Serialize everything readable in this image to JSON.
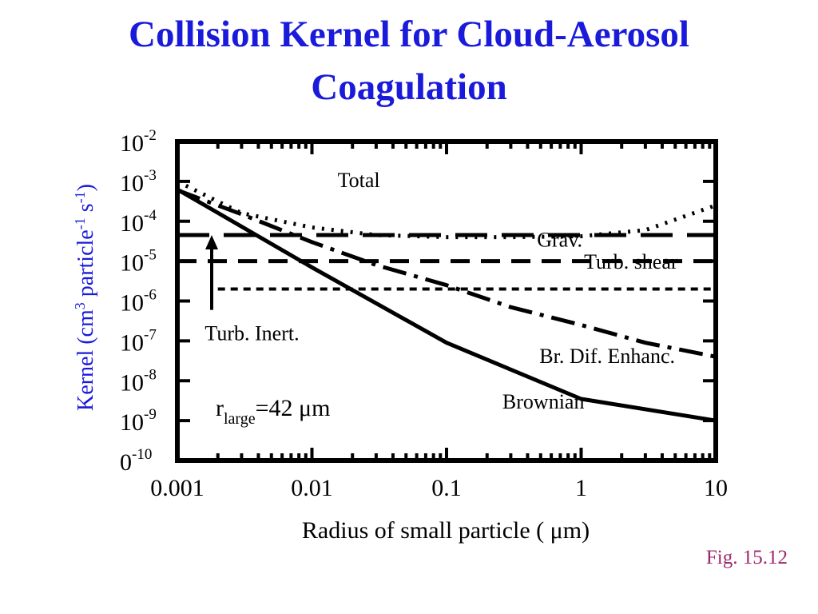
{
  "slide": {
    "title_line1": "Collision Kernel for Cloud-Aerosol",
    "title_line2": "Coagulation",
    "fig_label": "Fig. 15.12",
    "title_color": "#1a1adb",
    "fig_color": "#9c2a6b",
    "ylabel_color": "#1a1adb"
  },
  "chart_data": {
    "type": "line",
    "title": "Collision Kernel for Cloud-Aerosol Coagulation",
    "xlabel": "Radius of small particle ( μm)",
    "ylabel": "Kernel (cm3 particle-1 s-1)",
    "xscale": "log",
    "yscale": "log",
    "xlim": [
      0.001,
      10
    ],
    "ylim": [
      1e-10,
      0.01
    ],
    "x_ticks": [
      {
        "label": "0.001",
        "value": 0.001
      },
      {
        "label": "0.01",
        "value": 0.01
      },
      {
        "label": "0.1",
        "value": 0.1
      },
      {
        "label": "1",
        "value": 1
      },
      {
        "label": "10",
        "value": 10
      }
    ],
    "y_ticks": [
      {
        "base": "10",
        "exp": "-2",
        "value": 0.01
      },
      {
        "base": "10",
        "exp": "-3",
        "value": 0.001
      },
      {
        "base": "10",
        "exp": "-4",
        "value": 0.0001
      },
      {
        "base": "10",
        "exp": "-5",
        "value": 1e-05
      },
      {
        "base": "10",
        "exp": "-6",
        "value": 1e-06
      },
      {
        "base": "10",
        "exp": "-7",
        "value": 1e-07
      },
      {
        "base": "10",
        "exp": "-8",
        "value": 1e-08
      },
      {
        "base": "10",
        "exp": "-9",
        "value": 1e-09
      },
      {
        "base": "0",
        "exp": "-10",
        "value": 1e-10
      }
    ],
    "annotation": {
      "main": "r",
      "sub": "large",
      "rest": "=42 μm"
    },
    "series": [
      {
        "name": "Brownian",
        "style": "solid",
        "points": [
          [
            0.001,
            0.00063
          ],
          [
            0.01,
            7e-06
          ],
          [
            0.1,
            9e-08
          ],
          [
            1,
            3.5e-09
          ],
          [
            10,
            1e-09
          ]
        ]
      },
      {
        "name": "Total",
        "style": "dotted",
        "points": [
          [
            0.001,
            0.001
          ],
          [
            0.003,
            0.00016
          ],
          [
            0.01,
            7e-05
          ],
          [
            0.03,
            4.5e-05
          ],
          [
            0.1,
            4e-05
          ],
          [
            0.3,
            4e-05
          ],
          [
            1,
            4.2e-05
          ],
          [
            3,
            6e-05
          ],
          [
            10,
            0.00025
          ]
        ]
      },
      {
        "name": "Grav.",
        "style": "dash-long",
        "points": [
          [
            0.001,
            4.5e-05
          ],
          [
            10,
            4.5e-05
          ]
        ]
      },
      {
        "name": "Turb. shear",
        "style": "dash-med",
        "points": [
          [
            0.001,
            1e-05
          ],
          [
            10,
            1e-05
          ]
        ]
      },
      {
        "name": "Turb. Inert.",
        "style": "dash-short",
        "points": [
          [
            0.002,
            2e-06
          ],
          [
            10,
            2e-06
          ]
        ]
      },
      {
        "name": "Br. Dif. Enhanc.",
        "style": "dash-dot",
        "points": [
          [
            0.001,
            0.0006
          ],
          [
            0.003,
            0.00015
          ],
          [
            0.01,
            3e-05
          ],
          [
            0.03,
            8e-06
          ],
          [
            0.1,
            2.5e-06
          ],
          [
            0.3,
            7e-07
          ],
          [
            1,
            2.5e-07
          ],
          [
            3,
            9e-08
          ],
          [
            10,
            4e-08
          ]
        ]
      }
    ],
    "labels": [
      {
        "text": "Total",
        "x": 0.0155,
        "y": 0.00072
      },
      {
        "text": "Grav.",
        "x": 0.47,
        "y": 2.3e-05
      },
      {
        "text": "Turb. shear",
        "x": 1.05,
        "y": 6.5e-06
      },
      {
        "text": "Turb. Inert.",
        "x": 0.0016,
        "y": 1.05e-07
      },
      {
        "text": "Br. Dif. Enhanc.",
        "x": 0.49,
        "y": 2.8e-08
      },
      {
        "text": "Brownian",
        "x": 0.26,
        "y": 2e-09
      }
    ],
    "arrow": {
      "x": 0.0018,
      "y_from": 6e-07,
      "y_to": 4.5e-05
    }
  }
}
